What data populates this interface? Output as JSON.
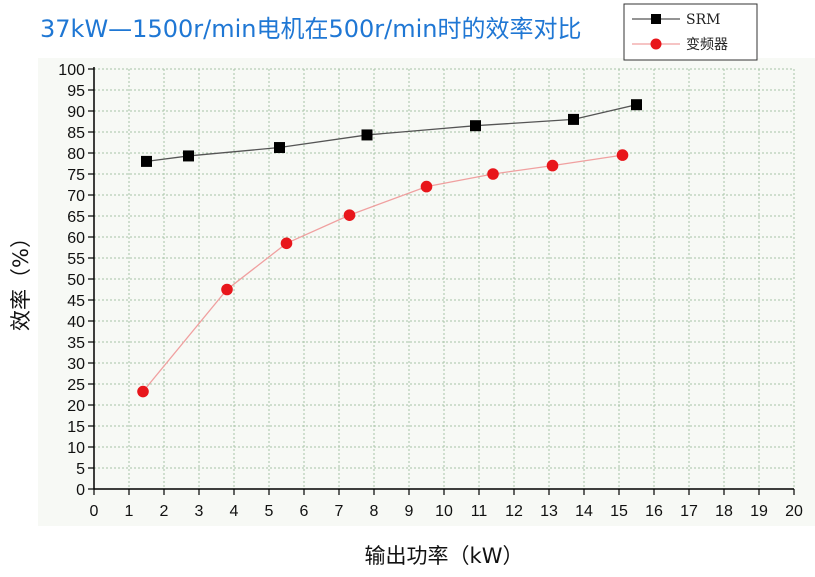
{
  "chart_data": {
    "type": "line",
    "title": "37kW—1500r/min电机在500r/min时的效率对比",
    "xlabel": "输出功率（kW）",
    "ylabel": "效率（%）",
    "xlim": [
      0,
      20
    ],
    "ylim": [
      0,
      100
    ],
    "x_ticks": [
      "0",
      "1",
      "2",
      "3",
      "4",
      "5",
      "6",
      "7",
      "8",
      "9",
      "10",
      "11",
      "12",
      "13",
      "14",
      "15",
      "16",
      "17",
      "18",
      "19",
      "20"
    ],
    "y_ticks": [
      "0",
      "5",
      "10",
      "15",
      "20",
      "25",
      "30",
      "35",
      "40",
      "45",
      "50",
      "55",
      "60",
      "65",
      "70",
      "75",
      "80",
      "85",
      "90",
      "95",
      "100"
    ],
    "grid": true,
    "legend_position": "top-right",
    "series": [
      {
        "name": "SRM",
        "marker": "square",
        "color": "#000000",
        "line_color": "#555555",
        "points": [
          [
            1.5,
            78
          ],
          [
            2.7,
            79.3
          ],
          [
            5.3,
            81.3
          ],
          [
            7.8,
            84.3
          ],
          [
            10.9,
            86.5
          ],
          [
            13.7,
            88
          ],
          [
            15.5,
            91.5
          ]
        ]
      },
      {
        "name": "变频器",
        "marker": "circle",
        "color": "#e8161b",
        "line_color": "#f0a0a0",
        "points": [
          [
            1.4,
            23.2
          ],
          [
            3.8,
            47.5
          ],
          [
            5.5,
            58.5
          ],
          [
            7.3,
            65.2
          ],
          [
            9.5,
            72
          ],
          [
            11.4,
            75
          ],
          [
            13.1,
            77
          ],
          [
            15.1,
            79.5
          ]
        ]
      }
    ]
  }
}
